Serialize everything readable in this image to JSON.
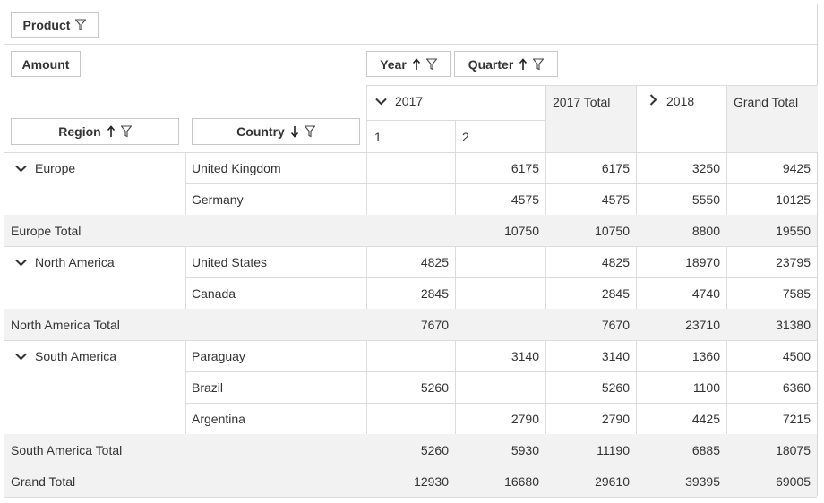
{
  "filter_area": {
    "product_label": "Product"
  },
  "data_field": {
    "label": "Amount"
  },
  "column_fields": {
    "year_label": "Year",
    "quarter_label": "Quarter"
  },
  "row_fields": {
    "region_label": "Region",
    "country_label": "Country"
  },
  "column_headers": {
    "year_2017": "2017",
    "q1": "1",
    "q2": "2",
    "total_2017": "2017 Total",
    "year_2018": "2018",
    "grand_total": "Grand Total"
  },
  "rows": [
    {
      "region": "Europe",
      "country": "United Kingdom",
      "q1": "",
      "q2": "6175",
      "t2017": "6175",
      "y2018": "3250",
      "grand": "9425"
    },
    {
      "region": "",
      "country": "Germany",
      "q1": "",
      "q2": "4575",
      "t2017": "4575",
      "y2018": "5550",
      "grand": "10125"
    },
    {
      "subtotal_label": "Europe Total",
      "q1": "",
      "q2": "10750",
      "t2017": "10750",
      "y2018": "8800",
      "grand": "19550"
    },
    {
      "region": "North America",
      "country": "United States",
      "q1": "4825",
      "q2": "",
      "t2017": "4825",
      "y2018": "18970",
      "grand": "23795"
    },
    {
      "region": "",
      "country": "Canada",
      "q1": "2845",
      "q2": "",
      "t2017": "2845",
      "y2018": "4740",
      "grand": "7585"
    },
    {
      "subtotal_label": "North America Total",
      "q1": "7670",
      "q2": "",
      "t2017": "7670",
      "y2018": "23710",
      "grand": "31380"
    },
    {
      "region": "South America",
      "country": "Paraguay",
      "q1": "",
      "q2": "3140",
      "t2017": "3140",
      "y2018": "1360",
      "grand": "4500"
    },
    {
      "region": "",
      "country": "Brazil",
      "q1": "5260",
      "q2": "",
      "t2017": "5260",
      "y2018": "1100",
      "grand": "6360"
    },
    {
      "region": "",
      "country": "Argentina",
      "q1": "",
      "q2": "2790",
      "t2017": "2790",
      "y2018": "4425",
      "grand": "7215"
    },
    {
      "subtotal_label": "South America Total",
      "q1": "5260",
      "q2": "5930",
      "t2017": "11190",
      "y2018": "6885",
      "grand": "18075"
    },
    {
      "subtotal_label": "Grand Total",
      "q1": "12930",
      "q2": "16680",
      "t2017": "29610",
      "y2018": "39395",
      "grand": "69005"
    }
  ],
  "colors": {
    "border": "#dcdcdc",
    "total_bg": "#f2f2f2",
    "text": "#333333"
  }
}
